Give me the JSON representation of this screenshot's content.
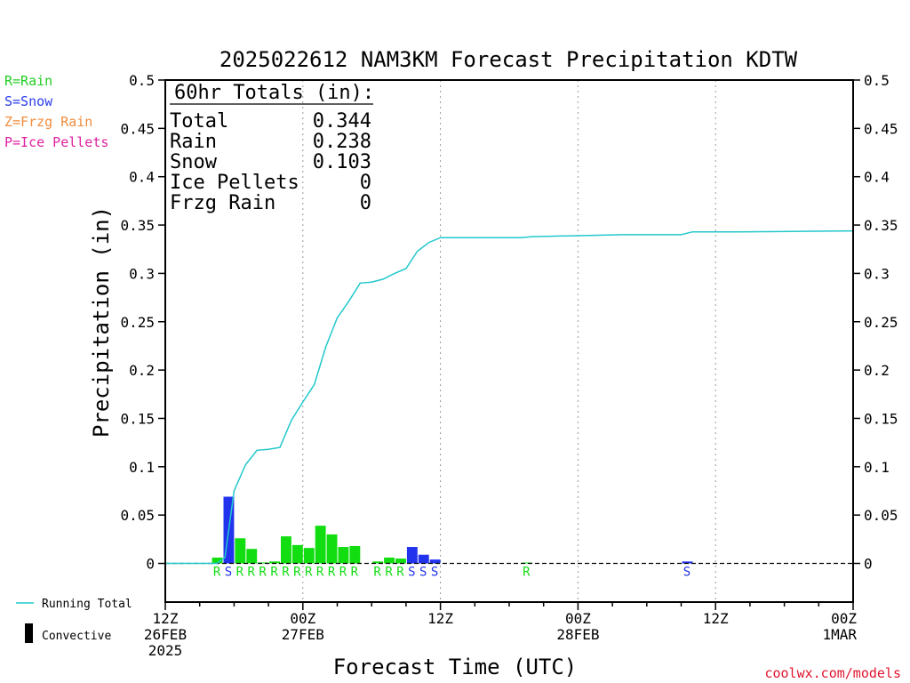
{
  "chart_data": {
    "type": "bar",
    "title": "2025022612 NAM3KM Forecast Precipitation KDTW",
    "ylabel": "Precipitation (in)",
    "xlabel": "Forecast Time (UTC)",
    "ylim": [
      -0.04,
      0.5
    ],
    "yticks": [
      "0.5",
      "0.45",
      "0.4",
      "0.35",
      "0.3",
      "0.25",
      "0.2",
      "0.15",
      "0.1",
      "0.05",
      "0"
    ],
    "xlim_hours": [
      0,
      60
    ],
    "xticks": [
      {
        "hour": 0,
        "lines": [
          "12Z",
          "26FEB",
          "2025"
        ]
      },
      {
        "hour": 12,
        "lines": [
          "00Z",
          "27FEB"
        ]
      },
      {
        "hour": 24,
        "lines": [
          "12Z"
        ]
      },
      {
        "hour": 36,
        "lines": [
          "00Z",
          "28FEB"
        ]
      },
      {
        "hour": 48,
        "lines": [
          "12Z"
        ]
      },
      {
        "hour": 60,
        "lines": [
          "00Z",
          "1MAR"
        ]
      }
    ],
    "grid": "vertical dotted at major ticks",
    "legend": [
      {
        "text": "R=Rain",
        "color": "#22cc22"
      },
      {
        "text": "S=Snow",
        "color": "#2a3cf0"
      },
      {
        "text": "Z=Frzg Rain",
        "color": "#f08c3c"
      },
      {
        "text": "P=Ice Pellets",
        "color": "#e020a0"
      }
    ],
    "bottom_legend": {
      "running_total": "Running Total",
      "convective": "Convective"
    },
    "totals_box": {
      "heading": "60hr Totals (in):",
      "rows": [
        {
          "label": "Total",
          "value": "0.344"
        },
        {
          "label": "Rain",
          "value": "0.238"
        },
        {
          "label": "Snow",
          "value": "0.103"
        },
        {
          "label": "Ice Pellets",
          "value": "0"
        },
        {
          "label": "Frzg Rain",
          "value": "0"
        }
      ]
    },
    "colors": {
      "rain": "#11dd11",
      "snow": "#2233ee",
      "running_total": "#22c8cc"
    },
    "bars": [
      {
        "hour": 5,
        "value": 0.006,
        "type": "R"
      },
      {
        "hour": 6,
        "value": 0.069,
        "type": "S"
      },
      {
        "hour": 7,
        "value": 0.026,
        "type": "R"
      },
      {
        "hour": 8,
        "value": 0.015,
        "type": "R"
      },
      {
        "hour": 9,
        "value": 0.001,
        "type": "R"
      },
      {
        "hour": 10,
        "value": 0.002,
        "type": "R"
      },
      {
        "hour": 11,
        "value": 0.028,
        "type": "R"
      },
      {
        "hour": 12,
        "value": 0.019,
        "type": "R"
      },
      {
        "hour": 13,
        "value": 0.016,
        "type": "R"
      },
      {
        "hour": 14,
        "value": 0.039,
        "type": "R"
      },
      {
        "hour": 15,
        "value": 0.03,
        "type": "R"
      },
      {
        "hour": 16,
        "value": 0.017,
        "type": "R"
      },
      {
        "hour": 17,
        "value": 0.018,
        "type": "R"
      },
      {
        "hour": 19,
        "value": 0.002,
        "type": "R"
      },
      {
        "hour": 20,
        "value": 0.006,
        "type": "R"
      },
      {
        "hour": 21,
        "value": 0.005,
        "type": "R"
      },
      {
        "hour": 22,
        "value": 0.017,
        "type": "S"
      },
      {
        "hour": 23,
        "value": 0.009,
        "type": "S"
      },
      {
        "hour": 24,
        "value": 0.004,
        "type": "S"
      },
      {
        "hour": 32,
        "value": 0.0005,
        "type": "R"
      },
      {
        "hour": 46,
        "value": 0.002,
        "type": "S"
      }
    ],
    "running_total": [
      {
        "hour": 0,
        "value": 0
      },
      {
        "hour": 4.5,
        "value": 0
      },
      {
        "hour": 5.2,
        "value": 0.006
      },
      {
        "hour": 6,
        "value": 0.075
      },
      {
        "hour": 7,
        "value": 0.102
      },
      {
        "hour": 8,
        "value": 0.117
      },
      {
        "hour": 9,
        "value": 0.118
      },
      {
        "hour": 10,
        "value": 0.12
      },
      {
        "hour": 11,
        "value": 0.148
      },
      {
        "hour": 12,
        "value": 0.167
      },
      {
        "hour": 13,
        "value": 0.185
      },
      {
        "hour": 14,
        "value": 0.224
      },
      {
        "hour": 15,
        "value": 0.254
      },
      {
        "hour": 16,
        "value": 0.271
      },
      {
        "hour": 17,
        "value": 0.29
      },
      {
        "hour": 18,
        "value": 0.291
      },
      {
        "hour": 19,
        "value": 0.294
      },
      {
        "hour": 20,
        "value": 0.3
      },
      {
        "hour": 21,
        "value": 0.305
      },
      {
        "hour": 22,
        "value": 0.323
      },
      {
        "hour": 23,
        "value": 0.332
      },
      {
        "hour": 24,
        "value": 0.337
      },
      {
        "hour": 31,
        "value": 0.337
      },
      {
        "hour": 32,
        "value": 0.338
      },
      {
        "hour": 40,
        "value": 0.34
      },
      {
        "hour": 45,
        "value": 0.34
      },
      {
        "hour": 46,
        "value": 0.343
      },
      {
        "hour": 50,
        "value": 0.343
      },
      {
        "hour": 60,
        "value": 0.344
      }
    ],
    "credit": "coolwx.com/models"
  }
}
